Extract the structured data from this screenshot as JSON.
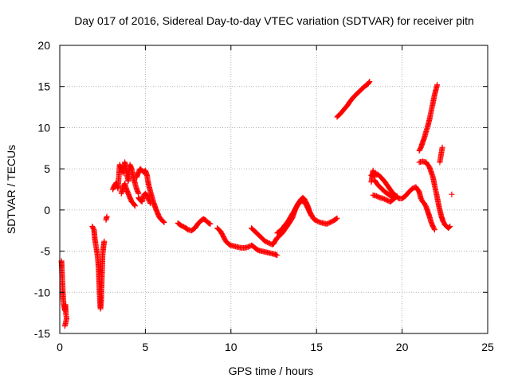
{
  "chart_data": {
    "type": "scatter",
    "title": "Day 017 of 2016, Sidereal Day-to-day VTEC variation (SDTVAR) for receiver pitn",
    "xlabel": "GPS time / hours",
    "ylabel": "SDTVAR / TECUs",
    "xlim": [
      0,
      25
    ],
    "ylim": [
      -15,
      20
    ],
    "xticks": [
      0,
      5,
      10,
      15,
      20,
      25
    ],
    "yticks": [
      -15,
      -10,
      -5,
      0,
      5,
      10,
      15,
      20
    ],
    "grid": true,
    "marker": "+",
    "color": "#ff0000",
    "series": [
      {
        "name": "SDTVAR",
        "segments": [
          [
            [
              0.1,
              -6.2
            ],
            [
              0.12,
              -7.0
            ],
            [
              0.15,
              -8.5
            ],
            [
              0.18,
              -9.8
            ],
            [
              0.2,
              -10.8
            ],
            [
              0.23,
              -11.4
            ],
            [
              0.26,
              -11.8
            ],
            [
              0.3,
              -12.2
            ],
            [
              0.33,
              -11.5
            ],
            [
              0.36,
              -12.6
            ],
            [
              0.4,
              -13.2
            ],
            [
              0.3,
              -14.1
            ]
          ],
          [
            [
              1.9,
              -2.0
            ],
            [
              2.0,
              -2.4
            ],
            [
              2.05,
              -3.5
            ],
            [
              2.1,
              -4.2
            ],
            [
              2.15,
              -4.8
            ],
            [
              2.2,
              -5.5
            ],
            [
              2.25,
              -6.5
            ],
            [
              2.28,
              -7.5
            ],
            [
              2.3,
              -8.8
            ],
            [
              2.33,
              -10.2
            ],
            [
              2.35,
              -11.4
            ],
            [
              2.38,
              -12.0
            ],
            [
              2.42,
              -11.0
            ],
            [
              2.45,
              -9.0
            ],
            [
              2.48,
              -7.0
            ],
            [
              2.5,
              -5.5
            ],
            [
              2.55,
              -4.5
            ],
            [
              2.6,
              -3.8
            ]
          ],
          [
            [
              2.7,
              -1.2
            ],
            [
              2.75,
              -0.8
            ]
          ],
          [
            [
              3.1,
              2.5
            ],
            [
              3.2,
              3.0
            ],
            [
              3.3,
              3.3
            ],
            [
              3.4,
              2.6
            ],
            [
              3.5,
              5.5
            ],
            [
              3.6,
              5.0
            ],
            [
              3.7,
              4.5
            ],
            [
              3.8,
              5.8
            ],
            [
              3.9,
              4.5
            ],
            [
              4.0,
              3.5
            ],
            [
              4.1,
              5.5
            ],
            [
              4.2,
              5.0
            ],
            [
              4.3,
              4.0
            ],
            [
              4.4,
              3.2
            ],
            [
              4.5,
              2.5
            ],
            [
              4.6,
              2.0
            ]
          ],
          [
            [
              4.5,
              4.0
            ],
            [
              4.6,
              4.6
            ],
            [
              4.7,
              5.0
            ],
            [
              4.8,
              4.8
            ],
            [
              4.9,
              4.6
            ],
            [
              5.0,
              4.8
            ],
            [
              5.1,
              4.2
            ],
            [
              5.15,
              3.5
            ],
            [
              5.2,
              3.0
            ],
            [
              5.3,
              2.2
            ],
            [
              5.4,
              1.5
            ],
            [
              5.5,
              0.8
            ],
            [
              5.6,
              0.2
            ],
            [
              5.7,
              -0.3
            ],
            [
              5.8,
              -0.8
            ],
            [
              5.9,
              -1.1
            ],
            [
              6.0,
              -1.3
            ],
            [
              6.1,
              -1.5
            ]
          ],
          [
            [
              3.6,
              2.0
            ],
            [
              3.7,
              2.8
            ],
            [
              3.8,
              3.2
            ],
            [
              3.9,
              2.5
            ],
            [
              4.0,
              2.0
            ],
            [
              4.1,
              1.5
            ],
            [
              4.2,
              1.0
            ],
            [
              4.3,
              0.8
            ],
            [
              4.4,
              0.5
            ]
          ],
          [
            [
              4.6,
              1.5
            ],
            [
              4.7,
              1.2
            ],
            [
              4.8,
              1.0
            ],
            [
              4.9,
              1.8
            ],
            [
              5.0,
              2.0
            ],
            [
              5.1,
              1.8
            ],
            [
              5.2,
              1.2
            ],
            [
              5.3,
              0.8
            ]
          ],
          [
            [
              6.9,
              -1.6
            ],
            [
              7.1,
              -1.9
            ],
            [
              7.3,
              -2.1
            ],
            [
              7.5,
              -2.4
            ],
            [
              7.7,
              -2.5
            ],
            [
              7.9,
              -2.2
            ],
            [
              8.0,
              -1.9
            ],
            [
              8.1,
              -1.6
            ],
            [
              8.2,
              -1.4
            ],
            [
              8.3,
              -1.2
            ],
            [
              8.4,
              -1.1
            ],
            [
              8.5,
              -1.2
            ],
            [
              8.6,
              -1.4
            ],
            [
              8.7,
              -1.6
            ],
            [
              8.8,
              -1.7
            ]
          ],
          [
            [
              9.2,
              -2.2
            ],
            [
              9.4,
              -2.6
            ],
            [
              9.5,
              -3.0
            ],
            [
              9.6,
              -3.4
            ],
            [
              9.7,
              -3.8
            ],
            [
              9.8,
              -4.0
            ],
            [
              9.9,
              -4.2
            ],
            [
              10.0,
              -4.3
            ],
            [
              10.2,
              -4.4
            ],
            [
              10.4,
              -4.5
            ],
            [
              10.6,
              -4.6
            ],
            [
              10.8,
              -4.6
            ],
            [
              11.0,
              -4.5
            ],
            [
              11.2,
              -4.3
            ],
            [
              11.3,
              -4.4
            ],
            [
              11.4,
              -4.6
            ],
            [
              11.6,
              -4.9
            ],
            [
              11.8,
              -5.0
            ],
            [
              12.0,
              -5.1
            ],
            [
              12.2,
              -5.2
            ],
            [
              12.4,
              -5.3
            ],
            [
              12.6,
              -5.4
            ],
            [
              12.7,
              -5.5
            ]
          ],
          [
            [
              11.2,
              -2.2
            ],
            [
              11.4,
              -2.6
            ],
            [
              11.6,
              -3.0
            ],
            [
              11.8,
              -3.4
            ],
            [
              12.0,
              -3.8
            ],
            [
              12.2,
              -4.0
            ],
            [
              12.4,
              -4.2
            ],
            [
              12.5,
              -4.1
            ],
            [
              12.6,
              -3.7
            ],
            [
              12.7,
              -3.4
            ],
            [
              12.8,
              -3.2
            ],
            [
              13.0,
              -2.8
            ],
            [
              13.2,
              -2.2
            ],
            [
              13.4,
              -1.6
            ],
            [
              13.6,
              -0.9
            ],
            [
              13.7,
              -0.3
            ],
            [
              13.8,
              0.3
            ],
            [
              13.9,
              0.7
            ],
            [
              14.0,
              1.0
            ],
            [
              14.1,
              1.3
            ],
            [
              14.2,
              1.5
            ],
            [
              14.3,
              1.3
            ],
            [
              14.4,
              0.9
            ],
            [
              14.5,
              0.4
            ],
            [
              14.6,
              -0.2
            ],
            [
              14.7,
              -0.6
            ],
            [
              14.8,
              -1.0
            ],
            [
              14.9,
              -1.2
            ],
            [
              15.0,
              -1.3
            ],
            [
              15.2,
              -1.5
            ],
            [
              15.4,
              -1.6
            ],
            [
              15.6,
              -1.7
            ],
            [
              15.8,
              -1.5
            ],
            [
              16.0,
              -1.3
            ],
            [
              16.2,
              -1.0
            ]
          ],
          [
            [
              12.7,
              -2.8
            ],
            [
              12.9,
              -2.5
            ],
            [
              13.1,
              -2.0
            ],
            [
              13.3,
              -1.5
            ],
            [
              13.5,
              -0.8
            ],
            [
              13.7,
              -0.1
            ],
            [
              13.9,
              0.6
            ],
            [
              14.1,
              1.1
            ],
            [
              14.3,
              1.0
            ],
            [
              14.5,
              0.2
            ],
            [
              14.7,
              -0.7
            ]
          ],
          [
            [
              16.2,
              11.3
            ],
            [
              16.4,
              11.7
            ],
            [
              16.6,
              12.2
            ],
            [
              16.8,
              12.7
            ],
            [
              17.0,
              13.3
            ],
            [
              17.2,
              13.8
            ],
            [
              17.4,
              14.2
            ],
            [
              17.6,
              14.6
            ],
            [
              17.8,
              15.0
            ],
            [
              18.0,
              15.3
            ],
            [
              18.1,
              15.6
            ]
          ],
          [
            [
              18.2,
              4.2
            ],
            [
              18.4,
              4.5
            ],
            [
              18.6,
              4.3
            ],
            [
              18.8,
              3.9
            ],
            [
              19.0,
              3.4
            ],
            [
              19.2,
              2.8
            ],
            [
              19.4,
              2.2
            ],
            [
              19.6,
              1.8
            ],
            [
              19.8,
              1.4
            ],
            [
              20.0,
              1.4
            ],
            [
              20.2,
              1.7
            ],
            [
              20.4,
              2.2
            ],
            [
              20.6,
              2.6
            ],
            [
              20.8,
              2.8
            ],
            [
              21.0,
              2.2
            ],
            [
              21.1,
              1.4
            ],
            [
              21.2,
              1.0
            ],
            [
              21.3,
              0.8
            ],
            [
              21.4,
              0.4
            ],
            [
              21.5,
              -0.2
            ],
            [
              21.6,
              -0.8
            ],
            [
              21.7,
              -1.5
            ],
            [
              21.8,
              -2.0
            ],
            [
              21.9,
              -2.4
            ]
          ],
          [
            [
              18.3,
              1.8
            ],
            [
              18.5,
              1.7
            ],
            [
              18.7,
              1.5
            ],
            [
              18.9,
              1.4
            ],
            [
              19.1,
              1.2
            ],
            [
              19.3,
              1.0
            ],
            [
              19.5,
              1.3
            ],
            [
              19.7,
              1.7
            ]
          ],
          [
            [
              18.4,
              3.6
            ],
            [
              18.6,
              3.0
            ],
            [
              18.8,
              2.6
            ],
            [
              19.0,
              2.2
            ],
            [
              19.2,
              1.9
            ],
            [
              19.4,
              1.6
            ],
            [
              19.6,
              1.5
            ]
          ],
          [
            [
              18.2,
              3.4
            ],
            [
              18.3,
              4.8
            ],
            [
              18.4,
              4.0
            ]
          ],
          [
            [
              21.0,
              5.8
            ],
            [
              21.2,
              5.9
            ],
            [
              21.4,
              5.8
            ],
            [
              21.6,
              5.2
            ],
            [
              21.8,
              4.0
            ],
            [
              21.9,
              3.0
            ],
            [
              22.0,
              2.0
            ],
            [
              22.1,
              1.0
            ],
            [
              22.2,
              0.0
            ],
            [
              22.3,
              -0.8
            ],
            [
              22.4,
              -1.4
            ],
            [
              22.5,
              -1.8
            ],
            [
              22.6,
              -2.0
            ],
            [
              22.7,
              -2.2
            ],
            [
              22.8,
              -2.0
            ]
          ],
          [
            [
              21.0,
              7.2
            ],
            [
              21.1,
              7.6
            ],
            [
              21.2,
              8.2
            ],
            [
              21.3,
              8.8
            ],
            [
              21.4,
              9.5
            ],
            [
              21.5,
              10.2
            ],
            [
              21.6,
              11.0
            ],
            [
              21.7,
              12.0
            ],
            [
              21.8,
              13.0
            ],
            [
              21.9,
              14.0
            ],
            [
              22.0,
              14.8
            ],
            [
              22.05,
              15.2
            ]
          ],
          [
            [
              22.2,
              5.8
            ],
            [
              22.25,
              6.4
            ],
            [
              22.3,
              7.0
            ],
            [
              22.35,
              7.6
            ]
          ],
          [
            [
              22.9,
              1.9
            ]
          ]
        ]
      }
    ]
  }
}
